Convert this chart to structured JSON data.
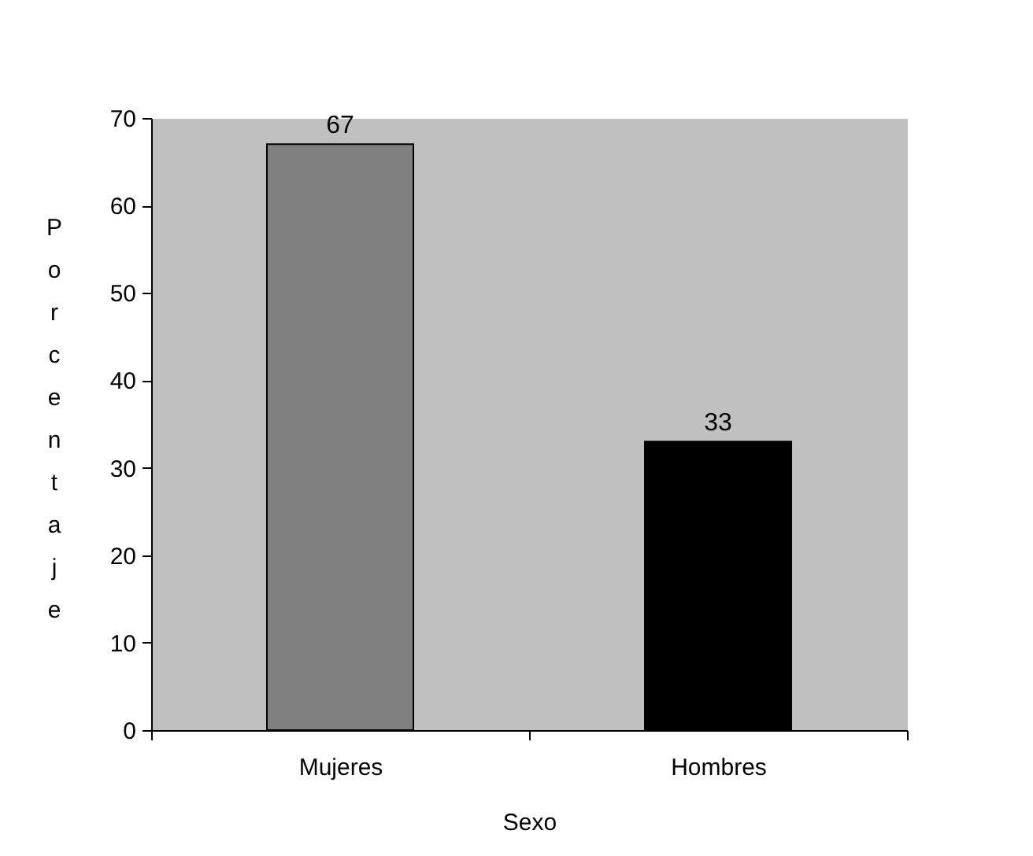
{
  "chart_data": {
    "type": "bar",
    "categories": [
      "Mujeres",
      "Hombres"
    ],
    "values": [
      67,
      33
    ],
    "colors": [
      "#808080",
      "#000000"
    ],
    "xlabel": "Sexo",
    "ylabel": "Porcentaje",
    "ylim": [
      0,
      70
    ],
    "yticks": [
      0,
      10,
      20,
      30,
      40,
      50,
      60,
      70
    ],
    "grid": false,
    "data_labels": true
  }
}
